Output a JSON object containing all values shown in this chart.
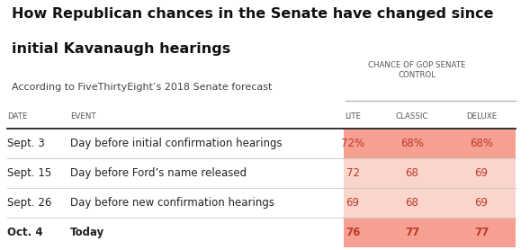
{
  "title_line1": "How Republican chances in the Senate have changed since",
  "title_line2": "initial Kavanaugh hearings",
  "subtitle": "According to FiveThirtyEight’s 2018 Senate forecast",
  "header_group": "CHANCE OF GOP SENATE\nCONTROL",
  "date_col": [
    "Sept. 3",
    "Sept. 15",
    "Sept. 26",
    "Oct. 4"
  ],
  "event_col": [
    "Day before initial confirmation hearings",
    "Day before Ford’s name released",
    "Day before new confirmation hearings",
    "Today"
  ],
  "lite_vals": [
    "72%",
    "72",
    "69",
    "76"
  ],
  "classic_vals": [
    "68%",
    "68",
    "68",
    "77"
  ],
  "deluxe_vals": [
    "68%",
    "69",
    "69",
    "77"
  ],
  "row_colors": [
    "#f5a090",
    "#fad5cc",
    "#fad5cc",
    "#f5a090"
  ],
  "bg_color": "#ffffff",
  "text_color": "#222222",
  "header_color": "#555555",
  "value_color": "#c0392b",
  "title_color": "#111111",
  "subtitle_color": "#444444",
  "sep_color": "#cccccc",
  "thick_line_color": "#333333"
}
